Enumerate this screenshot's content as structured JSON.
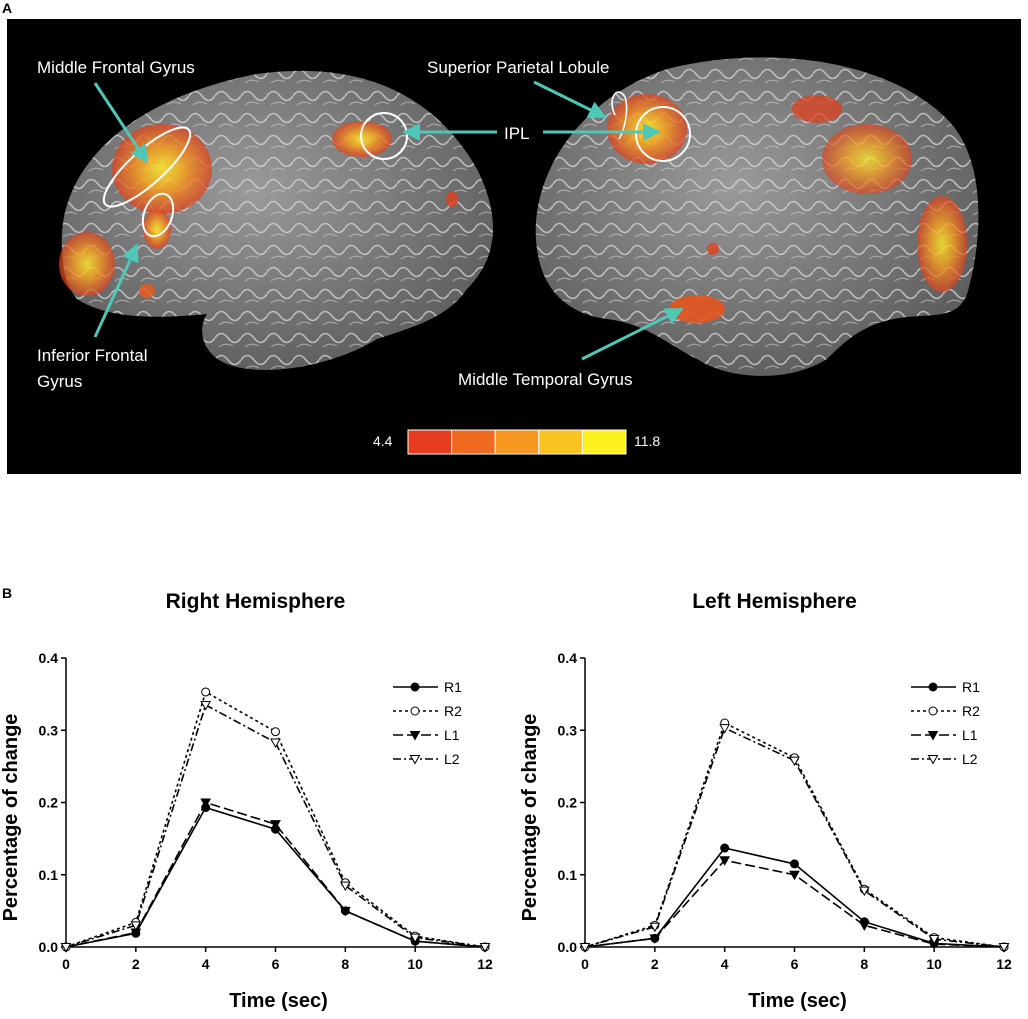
{
  "figure": {
    "panel_a_label": "A",
    "panel_b_label": "B",
    "colors": {
      "background_a": "#000000",
      "annotation_arrow": "#4fc7b7",
      "activation_low": "#e0401e",
      "activation_high": "#ffef2a",
      "cortex": "#7d7d7d"
    }
  },
  "brain_panel": {
    "labels": {
      "middle_frontal_gyrus": "Middle Frontal Gyrus",
      "inferior_frontal_gyrus_line1": "Inferior Frontal",
      "inferior_frontal_gyrus_line2": "Gyrus",
      "superior_parietal_lobule": "Superior Parietal Lobule",
      "ipl": "IPL",
      "middle_temporal_gyrus": "Middle Temporal  Gyrus"
    },
    "colorbar": {
      "min_label": "4.4",
      "max_label": "11.8",
      "colors": [
        "#e53b1f",
        "#ef6a1f",
        "#f7971f",
        "#fbc31f",
        "#fff01f"
      ]
    }
  },
  "chart_data": [
    {
      "type": "line",
      "title": "Right Hemisphere",
      "xlabel": "Time (sec)",
      "ylabel": "Percentage of change",
      "x": [
        0,
        2,
        4,
        6,
        8,
        10,
        12
      ],
      "xlim": [
        0,
        12
      ],
      "ylim": [
        0,
        0.4
      ],
      "xticks": [
        "0",
        "2",
        "4",
        "6",
        "8",
        "10",
        "12"
      ],
      "yticks": [
        "0.0",
        "0.1",
        "0.2",
        "0.3",
        "0.4"
      ],
      "legend_position": "top-right",
      "series": [
        {
          "name": "R1",
          "values": [
            0,
            0.019,
            0.193,
            0.163,
            0.05,
            0.008,
            0
          ],
          "marker": "filled-circle",
          "dash": "solid"
        },
        {
          "name": "R2",
          "values": [
            0,
            0.034,
            0.353,
            0.298,
            0.089,
            0.015,
            0
          ],
          "marker": "open-circle",
          "dash": "short-dash"
        },
        {
          "name": "L1",
          "values": [
            0,
            0.02,
            0.2,
            0.17,
            0.05,
            0.008,
            0
          ],
          "marker": "filled-triangle-down",
          "dash": "long-dash"
        },
        {
          "name": "L2",
          "values": [
            0,
            0.03,
            0.335,
            0.283,
            0.085,
            0.013,
            0
          ],
          "marker": "open-triangle-down",
          "dash": "dash-dot"
        }
      ]
    },
    {
      "type": "line",
      "title": "Left Hemisphere",
      "xlabel": "Time (sec)",
      "ylabel": "Percentage of change",
      "x": [
        0,
        2,
        4,
        6,
        8,
        10,
        12
      ],
      "xlim": [
        0,
        12
      ],
      "ylim": [
        0,
        0.4
      ],
      "xticks": [
        "0",
        "2",
        "4",
        "6",
        "8",
        "10",
        "12"
      ],
      "yticks": [
        "0.0",
        "0.1",
        "0.2",
        "0.3",
        "0.4"
      ],
      "legend_position": "top-right",
      "series": [
        {
          "name": "R1",
          "values": [
            0,
            0.012,
            0.137,
            0.115,
            0.035,
            0.005,
            0
          ],
          "marker": "filled-circle",
          "dash": "solid"
        },
        {
          "name": "R2",
          "values": [
            0,
            0.03,
            0.31,
            0.262,
            0.08,
            0.013,
            0
          ],
          "marker": "open-circle",
          "dash": "short-dash"
        },
        {
          "name": "L1",
          "values": [
            0,
            0.012,
            0.12,
            0.1,
            0.03,
            0.004,
            0
          ],
          "marker": "filled-triangle-down",
          "dash": "long-dash"
        },
        {
          "name": "L2",
          "values": [
            0,
            0.028,
            0.303,
            0.258,
            0.078,
            0.011,
            0
          ],
          "marker": "open-triangle-down",
          "dash": "dash-dot"
        }
      ]
    }
  ]
}
